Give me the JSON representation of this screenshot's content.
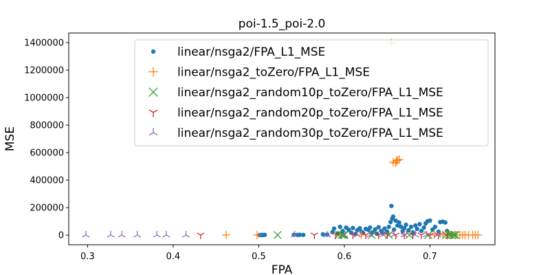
{
  "chart_data": {
    "type": "scatter",
    "title": "poi-1.5_poi-2.0",
    "xlabel": "FPA",
    "ylabel": "MSE",
    "xlim": [
      0.278,
      0.776
    ],
    "ylim": [
      -70000,
      1470000
    ],
    "xticks": [
      0.3,
      0.4,
      0.5,
      0.6,
      0.7
    ],
    "xtick_labels": [
      "0.3",
      "0.4",
      "0.5",
      "0.6",
      "0.7"
    ],
    "yticks": [
      0,
      200000,
      400000,
      600000,
      800000,
      1000000,
      1200000,
      1400000
    ],
    "ytick_labels": [
      "0",
      "200000",
      "400000",
      "600000",
      "800000",
      "1000000",
      "1200000",
      "1400000"
    ],
    "grid": false,
    "legend_position": "top-right",
    "series": [
      {
        "name": "linear/nsga2/FPA_L1_MSE",
        "marker": "circle",
        "color": "#1f77b4",
        "points": [
          [
            0.501,
            500
          ],
          [
            0.503,
            1200
          ],
          [
            0.505,
            800
          ],
          [
            0.507,
            2000
          ],
          [
            0.541,
            3000
          ],
          [
            0.545,
            1500
          ],
          [
            0.548,
            2500
          ],
          [
            0.552,
            1800
          ],
          [
            0.575,
            6000
          ],
          [
            0.58,
            4000
          ],
          [
            0.586,
            22000
          ],
          [
            0.588,
            48000
          ],
          [
            0.592,
            12000
          ],
          [
            0.595,
            60000
          ],
          [
            0.598,
            30000
          ],
          [
            0.602,
            55000
          ],
          [
            0.605,
            40000
          ],
          [
            0.608,
            18000
          ],
          [
            0.61,
            52000
          ],
          [
            0.613,
            8000
          ],
          [
            0.615,
            35000
          ],
          [
            0.618,
            50000
          ],
          [
            0.62,
            25000
          ],
          [
            0.622,
            14000
          ],
          [
            0.625,
            45000
          ],
          [
            0.628,
            38000
          ],
          [
            0.63,
            55000
          ],
          [
            0.633,
            20000
          ],
          [
            0.636,
            42000
          ],
          [
            0.638,
            10000
          ],
          [
            0.64,
            58000
          ],
          [
            0.643,
            30000
          ],
          [
            0.645,
            15000
          ],
          [
            0.647,
            48000
          ],
          [
            0.65,
            25000
          ],
          [
            0.652,
            60000
          ],
          [
            0.654,
            95000
          ],
          [
            0.655,
            212000
          ],
          [
            0.656,
            120000
          ],
          [
            0.657,
            135000
          ],
          [
            0.658,
            40000
          ],
          [
            0.66,
            105000
          ],
          [
            0.662,
            70000
          ],
          [
            0.664,
            92000
          ],
          [
            0.666,
            62000
          ],
          [
            0.668,
            30000
          ],
          [
            0.67,
            50000
          ],
          [
            0.672,
            75000
          ],
          [
            0.675,
            35000
          ],
          [
            0.678,
            60000
          ],
          [
            0.68,
            20000
          ],
          [
            0.683,
            70000
          ],
          [
            0.685,
            45000
          ],
          [
            0.688,
            80000
          ],
          [
            0.69,
            30000
          ],
          [
            0.693,
            55000
          ],
          [
            0.695,
            85000
          ],
          [
            0.697,
            100000
          ],
          [
            0.7,
            106000
          ],
          [
            0.703,
            40000
          ],
          [
            0.706,
            60000
          ],
          [
            0.71,
            25000
          ],
          [
            0.712,
            95000
          ],
          [
            0.715,
            98000
          ],
          [
            0.718,
            92000
          ],
          [
            0.72,
            30000
          ]
        ]
      },
      {
        "name": "linear/nsga2_toZero/FPA_L1_MSE",
        "marker": "plus",
        "color": "#ff7f0e",
        "points": [
          [
            0.462,
            500
          ],
          [
            0.498,
            800
          ],
          [
            0.596,
            1000
          ],
          [
            0.62,
            2000
          ],
          [
            0.655,
            1398000
          ],
          [
            0.657,
            530000
          ],
          [
            0.66,
            525000
          ],
          [
            0.662,
            545000
          ],
          [
            0.664,
            550000
          ],
          [
            0.661,
            540000
          ],
          [
            0.705,
            1500
          ],
          [
            0.715,
            2000
          ],
          [
            0.72,
            500
          ],
          [
            0.725,
            1000
          ],
          [
            0.73,
            800
          ],
          [
            0.735,
            1200
          ],
          [
            0.738,
            600
          ],
          [
            0.741,
            900
          ],
          [
            0.745,
            700
          ],
          [
            0.75,
            1000
          ],
          [
            0.753,
            500
          ],
          [
            0.756,
            800
          ]
        ]
      },
      {
        "name": "linear/nsga2_random10p_toZero/FPA_L1_MSE",
        "marker": "x",
        "color": "#2ca02c",
        "points": [
          [
            0.522,
            1000
          ],
          [
            0.593,
            800
          ],
          [
            0.597,
            1500
          ],
          [
            0.599,
            600
          ],
          [
            0.6,
            1200
          ],
          [
            0.632,
            1000
          ],
          [
            0.652,
            800
          ],
          [
            0.676,
            1000
          ],
          [
            0.698,
            500
          ],
          [
            0.719,
            900
          ],
          [
            0.722,
            1500
          ],
          [
            0.725,
            600
          ],
          [
            0.728,
            1200
          ],
          [
            0.73,
            800
          ]
        ]
      },
      {
        "name": "linear/nsga2_random20p_toZero/FPA_L1_MSE",
        "marker": "tri_down",
        "color": "#d62728",
        "points": [
          [
            0.432,
            500
          ],
          [
            0.565,
            800
          ],
          [
            0.59,
            1000
          ],
          [
            0.61,
            600
          ],
          [
            0.625,
            800
          ],
          [
            0.64,
            1000
          ],
          [
            0.65,
            700
          ],
          [
            0.66,
            900
          ],
          [
            0.67,
            600
          ],
          [
            0.68,
            1000
          ],
          [
            0.69,
            800
          ],
          [
            0.7,
            700
          ],
          [
            0.71,
            900
          ],
          [
            0.72,
            600
          ]
        ]
      },
      {
        "name": "linear/nsga2_random30p_toZero/FPA_L1_MSE",
        "marker": "tri_up",
        "color": "#9467bd",
        "points": [
          [
            0.298,
            800
          ],
          [
            0.327,
            1000
          ],
          [
            0.34,
            900
          ],
          [
            0.358,
            700
          ],
          [
            0.381,
            1000
          ],
          [
            0.392,
            900
          ],
          [
            0.415,
            800
          ],
          [
            0.542,
            1000
          ],
          [
            0.58,
            800
          ],
          [
            0.6,
            1000
          ],
          [
            0.615,
            700
          ],
          [
            0.63,
            900
          ],
          [
            0.645,
            800
          ],
          [
            0.658,
            1000
          ],
          [
            0.67,
            600
          ],
          [
            0.683,
            900
          ],
          [
            0.696,
            800
          ],
          [
            0.709,
            700
          ]
        ]
      }
    ]
  }
}
